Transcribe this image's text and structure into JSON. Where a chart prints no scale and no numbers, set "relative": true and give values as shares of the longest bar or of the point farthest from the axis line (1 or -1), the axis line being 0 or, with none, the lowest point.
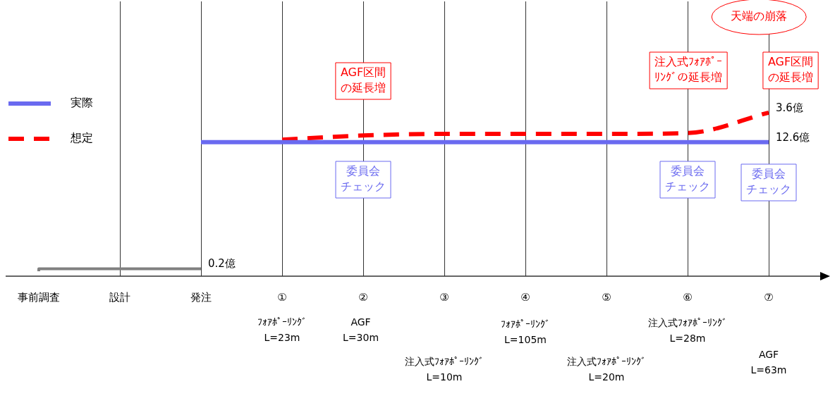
{
  "chart_data": {
    "type": "line",
    "relative": true,
    "categories": [
      "事前調査",
      "設計",
      "発注",
      "①",
      "②",
      "③",
      "④",
      "⑤",
      "⑥",
      "⑦"
    ],
    "grid": "x",
    "legend": "left",
    "marker": "none",
    "series": [
      {
        "type": "step",
        "color": "#808080",
        "values": [
          0.03,
          0.045,
          0.045,
          null,
          null,
          null,
          null,
          null,
          null,
          null
        ]
      },
      {
        "name": "実際",
        "color": "#6a6af0",
        "values": [
          null,
          null,
          0.82,
          0.82,
          0.82,
          0.82,
          0.82,
          0.82,
          0.82,
          0.82
        ]
      },
      {
        "name": "想定",
        "color": "#ff0000",
        "line_style": "dashed",
        "values": [
          null,
          null,
          null,
          0.835,
          0.86,
          0.87,
          0.87,
          0.87,
          0.875,
          1
        ]
      }
    ],
    "annotations": [
      {
        "text": "0.2億",
        "x": "発注",
        "y": 0.045
      },
      {
        "text": "12.6億",
        "x": "⑦",
        "y": 0.82
      },
      {
        "text": "3.6億",
        "x": "⑦",
        "y": 1
      },
      "AGF区間の延長増",
      "注入式ﾌｫｱﾎﾟｰﾘﾝｸﾞの延長増",
      "AGF区間の延長増",
      "天端の崩落",
      "委員会チェック",
      "委員会チェック",
      "委員会チェック",
      "ﾌｫｱﾎﾟｰﾘﾝｸﾞ\nL=23m",
      "AGF\nL=30m",
      "注入式ﾌｫｱﾎﾟｰﾘﾝｸﾞ\nL=10m",
      "ﾌｫｱﾎﾟｰﾘﾝｸﾞ\nL=105m",
      "注入式ﾌｫｱﾎﾟｰﾘﾝｸﾞ\nL=20m",
      "注入式ﾌｫｱﾎﾟｰﾘﾝｸﾞ\nL=28m",
      "AGF\nL=63m"
    ]
  }
}
